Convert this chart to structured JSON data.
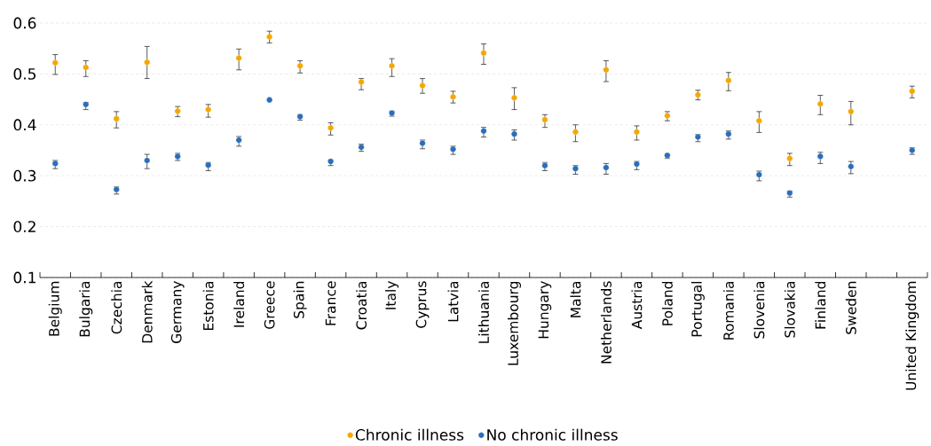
{
  "chart_data": {
    "type": "scatter",
    "categories": [
      "Belgium",
      "Bulgaria",
      "Czechia",
      "Denmark",
      "Germany",
      "Estonia",
      "Ireland",
      "Greece",
      "Spain",
      "France",
      "Croatia",
      "Italy",
      "Cyprus",
      "Latvia",
      "Lithuania",
      "Luxembourg",
      "Hungary",
      "Malta",
      "Netherlands",
      "Austria",
      "Poland",
      "Portugal",
      "Romania",
      "Slovenia",
      "Slovakia",
      "Finland",
      "Sweden",
      null,
      "United Kingdom"
    ],
    "series": [
      {
        "name": "Chronic illness",
        "color": "#f5a800",
        "values": [
          0.522,
          0.513,
          0.412,
          0.523,
          0.427,
          0.43,
          0.531,
          0.573,
          0.516,
          0.394,
          0.484,
          0.516,
          0.477,
          0.455,
          0.541,
          0.453,
          0.41,
          0.386,
          0.508,
          0.386,
          0.418,
          0.459,
          0.487,
          0.408,
          0.334,
          0.441,
          0.426,
          null,
          0.466
        ],
        "errors": [
          [
            0.499,
            0.538
          ],
          [
            0.495,
            0.526
          ],
          [
            0.394,
            0.426
          ],
          [
            0.491,
            0.554
          ],
          [
            0.416,
            0.436
          ],
          [
            0.415,
            0.44
          ],
          [
            0.508,
            0.549
          ],
          [
            0.561,
            0.584
          ],
          [
            0.502,
            0.526
          ],
          [
            0.38,
            0.404
          ],
          [
            0.469,
            0.491
          ],
          [
            0.495,
            0.53
          ],
          [
            0.462,
            0.491
          ],
          [
            0.443,
            0.466
          ],
          [
            0.519,
            0.559
          ],
          [
            0.43,
            0.473
          ],
          [
            0.395,
            0.42
          ],
          [
            0.367,
            0.4
          ],
          [
            0.485,
            0.526
          ],
          [
            0.37,
            0.398
          ],
          [
            0.408,
            0.426
          ],
          [
            0.449,
            0.468
          ],
          [
            0.467,
            0.503
          ],
          [
            0.385,
            0.426
          ],
          [
            0.32,
            0.344
          ],
          [
            0.42,
            0.458
          ],
          [
            0.4,
            0.446
          ],
          null,
          [
            0.453,
            0.476
          ]
        ]
      },
      {
        "name": "No chronic illness",
        "color": "#2a6ebb",
        "values": [
          0.324,
          0.44,
          0.273,
          0.33,
          0.338,
          0.321,
          0.37,
          0.449,
          0.416,
          0.328,
          0.356,
          0.423,
          0.364,
          0.352,
          0.388,
          0.382,
          0.32,
          0.314,
          0.316,
          0.323,
          0.34,
          0.376,
          0.382,
          0.302,
          0.266,
          0.338,
          0.318,
          null,
          0.35
        ],
        "errors": [
          [
            0.314,
            0.33
          ],
          [
            0.43,
            0.444
          ],
          [
            0.264,
            0.278
          ],
          [
            0.314,
            0.342
          ],
          [
            0.33,
            0.344
          ],
          [
            0.31,
            0.326
          ],
          [
            0.358,
            0.377
          ],
          null,
          [
            0.409,
            0.42
          ],
          [
            0.32,
            0.331
          ],
          [
            0.348,
            0.362
          ],
          [
            0.417,
            0.427
          ],
          [
            0.353,
            0.37
          ],
          [
            0.342,
            0.358
          ],
          [
            0.376,
            0.395
          ],
          [
            0.37,
            0.39
          ],
          [
            0.31,
            0.326
          ],
          [
            0.303,
            0.32
          ],
          [
            0.303,
            0.324
          ],
          [
            0.312,
            0.328
          ],
          [
            0.334,
            0.343
          ],
          [
            0.367,
            0.381
          ],
          [
            0.372,
            0.388
          ],
          [
            0.29,
            0.309
          ],
          [
            0.258,
            0.27
          ],
          [
            0.324,
            0.346
          ],
          [
            0.304,
            0.328
          ],
          null,
          [
            0.342,
            0.355
          ]
        ]
      }
    ],
    "ylim": [
      0.1,
      0.6
    ],
    "yticks": [
      0.1,
      0.2,
      0.3,
      0.4,
      0.5,
      0.6
    ],
    "grid": "y",
    "legend": "bottom",
    "marker": "circle"
  }
}
